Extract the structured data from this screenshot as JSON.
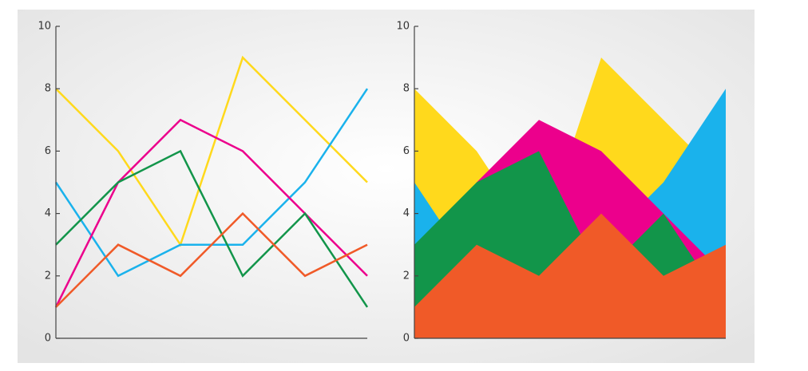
{
  "chart_data": [
    {
      "type": "line",
      "categories": [
        null,
        null,
        null,
        null,
        null,
        null
      ],
      "series": [
        {
          "color": "#ffd91c",
          "values": [
            8,
            6,
            3,
            9,
            7,
            5
          ]
        },
        {
          "color": "#1ab2ec",
          "values": [
            5,
            2,
            3,
            3,
            5,
            8
          ]
        },
        {
          "color": "#ec008c",
          "values": [
            1,
            5,
            7,
            6,
            4,
            2
          ]
        },
        {
          "color": "#12954a",
          "values": [
            3,
            5,
            6,
            2,
            4,
            1
          ]
        },
        {
          "color": "#f05a28",
          "values": [
            1,
            3,
            2,
            4,
            2,
            3
          ]
        }
      ],
      "ylim": [
        0,
        10
      ],
      "yticks": [
        0,
        2,
        4,
        6,
        8,
        10
      ]
    },
    {
      "type": "area",
      "categories": [
        null,
        null,
        null,
        null,
        null,
        null
      ],
      "series": [
        {
          "color": "#ffd91c",
          "values": [
            8,
            6,
            3,
            9,
            7,
            5
          ]
        },
        {
          "color": "#1ab2ec",
          "values": [
            5,
            2,
            3,
            3,
            5,
            8
          ]
        },
        {
          "color": "#ec008c",
          "values": [
            1,
            5,
            7,
            6,
            4,
            2
          ]
        },
        {
          "color": "#12954a",
          "values": [
            3,
            5,
            6,
            2,
            4,
            1
          ]
        },
        {
          "color": "#f05a28",
          "values": [
            1,
            3,
            2,
            4,
            2,
            3
          ]
        }
      ],
      "ylim": [
        0,
        10
      ],
      "yticks": [
        0,
        2,
        4,
        6,
        8,
        10
      ]
    }
  ]
}
